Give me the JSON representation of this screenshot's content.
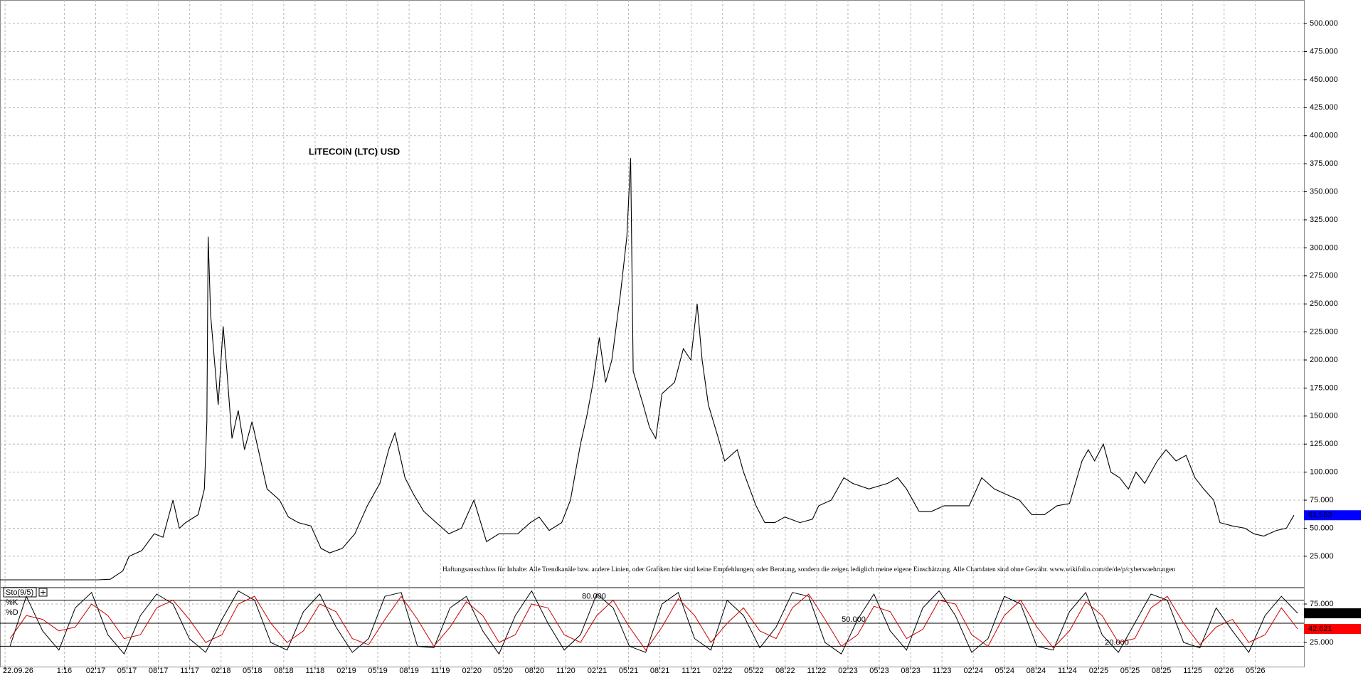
{
  "chart_data": [
    {
      "type": "line",
      "title": "LITECOIN (LTC) USD",
      "annotation": "Haftungsausschluss für Inhalte: Alle Trendkanäle bzw. andere Linien, oder Grafiken hier sind keine Empfehlungen, oder Beratung, sondern die zeigen lediglich meine eigene Einschätzung. Alle Chartdaten sind ohne Gewähr.  www.wikifolio.com/de/de/p/cyberwaehrungen",
      "color": "#000000",
      "last_value_color": "#0000ff",
      "grid": true,
      "x": [
        2016.32,
        2016.9,
        2017.1,
        2017.2,
        2017.3,
        2017.35,
        2017.45,
        2017.55,
        2017.62,
        2017.7,
        2017.75,
        2017.8,
        2017.9,
        2017.95,
        2017.97,
        2017.98,
        2018.0,
        2018.03,
        2018.06,
        2018.1,
        2018.13,
        2018.17,
        2018.22,
        2018.27,
        2018.33,
        2018.38,
        2018.45,
        2018.55,
        2018.62,
        2018.7,
        2018.8,
        2018.88,
        2018.95,
        2019.05,
        2019.15,
        2019.25,
        2019.35,
        2019.42,
        2019.47,
        2019.55,
        2019.62,
        2019.7,
        2019.8,
        2019.9,
        2020.0,
        2020.1,
        2020.2,
        2020.3,
        2020.45,
        2020.55,
        2020.62,
        2020.7,
        2020.8,
        2020.87,
        2020.95,
        2021.0,
        2021.05,
        2021.1,
        2021.15,
        2021.2,
        2021.27,
        2021.32,
        2021.35,
        2021.37,
        2021.45,
        2021.5,
        2021.55,
        2021.6,
        2021.7,
        2021.77,
        2021.83,
        2021.88,
        2021.92,
        2021.97,
        2022.05,
        2022.1,
        2022.2,
        2022.25,
        2022.35,
        2022.42,
        2022.5,
        2022.58,
        2022.7,
        2022.8,
        2022.85,
        2022.95,
        2023.05,
        2023.12,
        2023.25,
        2023.4,
        2023.48,
        2023.55,
        2023.65,
        2023.75,
        2023.85,
        2023.95,
        2024.05,
        2024.15,
        2024.25,
        2024.35,
        2024.45,
        2024.55,
        2024.65,
        2024.75,
        2024.85,
        2024.95,
        2025.0,
        2025.05,
        2025.12,
        2025.18,
        2025.25,
        2025.32,
        2025.38,
        2025.45,
        2025.55,
        2025.62,
        2025.7,
        2025.78,
        2025.85,
        2025.92,
        2026.0,
        2026.05,
        2026.15,
        2026.25,
        2026.32,
        2026.4,
        2026.5,
        2026.58,
        2026.64
      ],
      "values": [
        4,
        4,
        4,
        4.5,
        12,
        25,
        30,
        45,
        42,
        75,
        50,
        55,
        62,
        85,
        145,
        310,
        240,
        200,
        160,
        230,
        190,
        130,
        155,
        120,
        145,
        120,
        85,
        75,
        60,
        55,
        52,
        32,
        28,
        32,
        45,
        70,
        90,
        120,
        135,
        95,
        80,
        65,
        55,
        45,
        50,
        75,
        38,
        45,
        45,
        55,
        60,
        48,
        55,
        75,
        125,
        150,
        180,
        220,
        180,
        200,
        260,
        310,
        380,
        190,
        160,
        140,
        130,
        170,
        180,
        210,
        200,
        250,
        200,
        160,
        130,
        110,
        120,
        100,
        70,
        55,
        55,
        60,
        55,
        58,
        70,
        75,
        95,
        90,
        85,
        90,
        95,
        85,
        65,
        65,
        70,
        70,
        70,
        95,
        85,
        80,
        75,
        62,
        62,
        70,
        72,
        110,
        120,
        110,
        125,
        100,
        95,
        85,
        100,
        90,
        110,
        120,
        110,
        115,
        95,
        85,
        75,
        55,
        52,
        50,
        45,
        43,
        48,
        50,
        61.553
      ],
      "xlim": [
        2016.32,
        2026.72
      ],
      "xticks": [
        {
          "value": 2016.36,
          "label": "22.09.26"
        },
        {
          "value": 2016.833,
          "label": "1:16"
        },
        {
          "value": 2017.083,
          "label": "02.17"
        },
        {
          "value": 2017.333,
          "label": "05.17"
        },
        {
          "value": 2017.583,
          "label": "08.17"
        },
        {
          "value": 2017.833,
          "label": "11.17"
        },
        {
          "value": 2018.083,
          "label": "02.18"
        },
        {
          "value": 2018.333,
          "label": "05.18"
        },
        {
          "value": 2018.583,
          "label": "08.18"
        },
        {
          "value": 2018.833,
          "label": "11.18"
        },
        {
          "value": 2019.083,
          "label": "02.19"
        },
        {
          "value": 2019.333,
          "label": "05.19"
        },
        {
          "value": 2019.583,
          "label": "08.19"
        },
        {
          "value": 2019.833,
          "label": "11.19"
        },
        {
          "value": 2020.083,
          "label": "02.20"
        },
        {
          "value": 2020.333,
          "label": "05.20"
        },
        {
          "value": 2020.583,
          "label": "08.20"
        },
        {
          "value": 2020.833,
          "label": "11.20"
        },
        {
          "value": 2021.083,
          "label": "02.21"
        },
        {
          "value": 2021.333,
          "label": "05.21"
        },
        {
          "value": 2021.583,
          "label": "08.21"
        },
        {
          "value": 2021.833,
          "label": "11.21"
        },
        {
          "value": 2022.083,
          "label": "02.22"
        },
        {
          "value": 2022.333,
          "label": "05.22"
        },
        {
          "value": 2022.583,
          "label": "08.22"
        },
        {
          "value": 2022.833,
          "label": "11.22"
        },
        {
          "value": 2023.083,
          "label": "02.23"
        },
        {
          "value": 2023.333,
          "label": "05.23"
        },
        {
          "value": 2023.583,
          "label": "08.23"
        },
        {
          "value": 2023.833,
          "label": "11.23"
        },
        {
          "value": 2024.083,
          "label": "02.24"
        },
        {
          "value": 2024.333,
          "label": "05.24"
        },
        {
          "value": 2024.583,
          "label": "08.24"
        },
        {
          "value": 2024.833,
          "label": "11.24"
        },
        {
          "value": 2025.083,
          "label": "02.25"
        },
        {
          "value": 2025.333,
          "label": "05.25"
        },
        {
          "value": 2025.583,
          "label": "08.25"
        },
        {
          "value": 2025.833,
          "label": "11.25"
        },
        {
          "value": 2026.083,
          "label": "02.26"
        },
        {
          "value": 2026.333,
          "label": "05.26"
        }
      ],
      "ylim": [
        -3,
        521
      ],
      "yticks": [
        {
          "value": 25,
          "label": "25.000"
        },
        {
          "value": 50,
          "label": "50.000"
        },
        {
          "value": 75,
          "label": "75.000"
        },
        {
          "value": 100,
          "label": "100.000"
        },
        {
          "value": 125,
          "label": "125.000"
        },
        {
          "value": 150,
          "label": "150.000"
        },
        {
          "value": 175,
          "label": "175.000"
        },
        {
          "value": 200,
          "label": "200.000"
        },
        {
          "value": 225,
          "label": "225.000"
        },
        {
          "value": 250,
          "label": "250.000"
        },
        {
          "value": 275,
          "label": "275.000"
        },
        {
          "value": 300,
          "label": "300.000"
        },
        {
          "value": 325,
          "label": "325.000"
        },
        {
          "value": 350,
          "label": "350.000"
        },
        {
          "value": 375,
          "label": "375.000"
        },
        {
          "value": 400,
          "label": "400.000"
        },
        {
          "value": 425,
          "label": "425.000"
        },
        {
          "value": 450,
          "label": "450.000"
        },
        {
          "value": 475,
          "label": "475.000"
        },
        {
          "value": 500,
          "label": "500.000"
        }
      ]
    },
    {
      "type": "line",
      "legend_title": "Sto(9/5)",
      "grid": true,
      "x": [
        2016.4,
        2016.53,
        2016.66,
        2016.79,
        2016.92,
        2017.05,
        2017.18,
        2017.31,
        2017.44,
        2017.57,
        2017.7,
        2017.83,
        2017.96,
        2018.09,
        2018.22,
        2018.35,
        2018.48,
        2018.61,
        2018.74,
        2018.87,
        2019.0,
        2019.13,
        2019.26,
        2019.39,
        2019.52,
        2019.65,
        2019.78,
        2019.91,
        2020.04,
        2020.17,
        2020.3,
        2020.43,
        2020.56,
        2020.69,
        2020.82,
        2020.95,
        2021.08,
        2021.21,
        2021.34,
        2021.47,
        2021.6,
        2021.73,
        2021.86,
        2021.99,
        2022.12,
        2022.25,
        2022.38,
        2022.51,
        2022.64,
        2022.77,
        2022.9,
        2023.03,
        2023.16,
        2023.29,
        2023.42,
        2023.55,
        2023.68,
        2023.81,
        2023.94,
        2024.07,
        2024.2,
        2024.33,
        2024.46,
        2024.59,
        2024.72,
        2024.85,
        2024.98,
        2025.11,
        2025.24,
        2025.37,
        2025.5,
        2025.63,
        2025.76,
        2025.89,
        2026.02,
        2026.15,
        2026.28,
        2026.41,
        2026.54,
        2026.67
      ],
      "series": [
        {
          "name": "%K",
          "color": "#000000",
          "label_bg": "#000000",
          "values": [
            20,
            85,
            40,
            15,
            70,
            90,
            35,
            10,
            60,
            88,
            75,
            30,
            12,
            55,
            92,
            80,
            25,
            15,
            65,
            88,
            45,
            12,
            30,
            85,
            90,
            20,
            18,
            70,
            85,
            40,
            10,
            60,
            92,
            50,
            15,
            35,
            88,
            70,
            20,
            12,
            75,
            90,
            30,
            15,
            80,
            60,
            18,
            45,
            90,
            85,
            25,
            10,
            55,
            88,
            40,
            15,
            70,
            92,
            60,
            12,
            30,
            85,
            75,
            20,
            15,
            65,
            90,
            35,
            12,
            50,
            88,
            80,
            25,
            18,
            70,
            40,
            12,
            60,
            85,
            62.922
          ]
        },
        {
          "name": "%D",
          "color": "#cc0000",
          "label_bg": "#ff0000",
          "values": [
            30,
            60,
            55,
            40,
            45,
            75,
            60,
            30,
            35,
            70,
            80,
            55,
            25,
            35,
            75,
            85,
            50,
            25,
            40,
            75,
            65,
            30,
            22,
            55,
            85,
            55,
            20,
            45,
            78,
            60,
            25,
            35,
            75,
            70,
            35,
            25,
            60,
            80,
            45,
            15,
            45,
            82,
            60,
            25,
            50,
            70,
            40,
            30,
            70,
            88,
            55,
            20,
            35,
            72,
            65,
            30,
            42,
            80,
            75,
            35,
            20,
            60,
            80,
            45,
            18,
            40,
            78,
            60,
            25,
            30,
            70,
            85,
            50,
            22,
            45,
            55,
            25,
            35,
            70,
            42.621
          ]
        }
      ],
      "xlim": [
        2016.32,
        2026.72
      ],
      "ylim": [
        -7.4,
        96.3
      ],
      "yticks": [
        {
          "value": 25,
          "label": "25.000"
        },
        {
          "value": 75,
          "label": "75.000"
        }
      ],
      "levels": [
        {
          "value": 80,
          "label": "80.000"
        },
        {
          "value": 50,
          "label": "50.000"
        },
        {
          "value": 20,
          "label": "20.000"
        }
      ]
    }
  ]
}
